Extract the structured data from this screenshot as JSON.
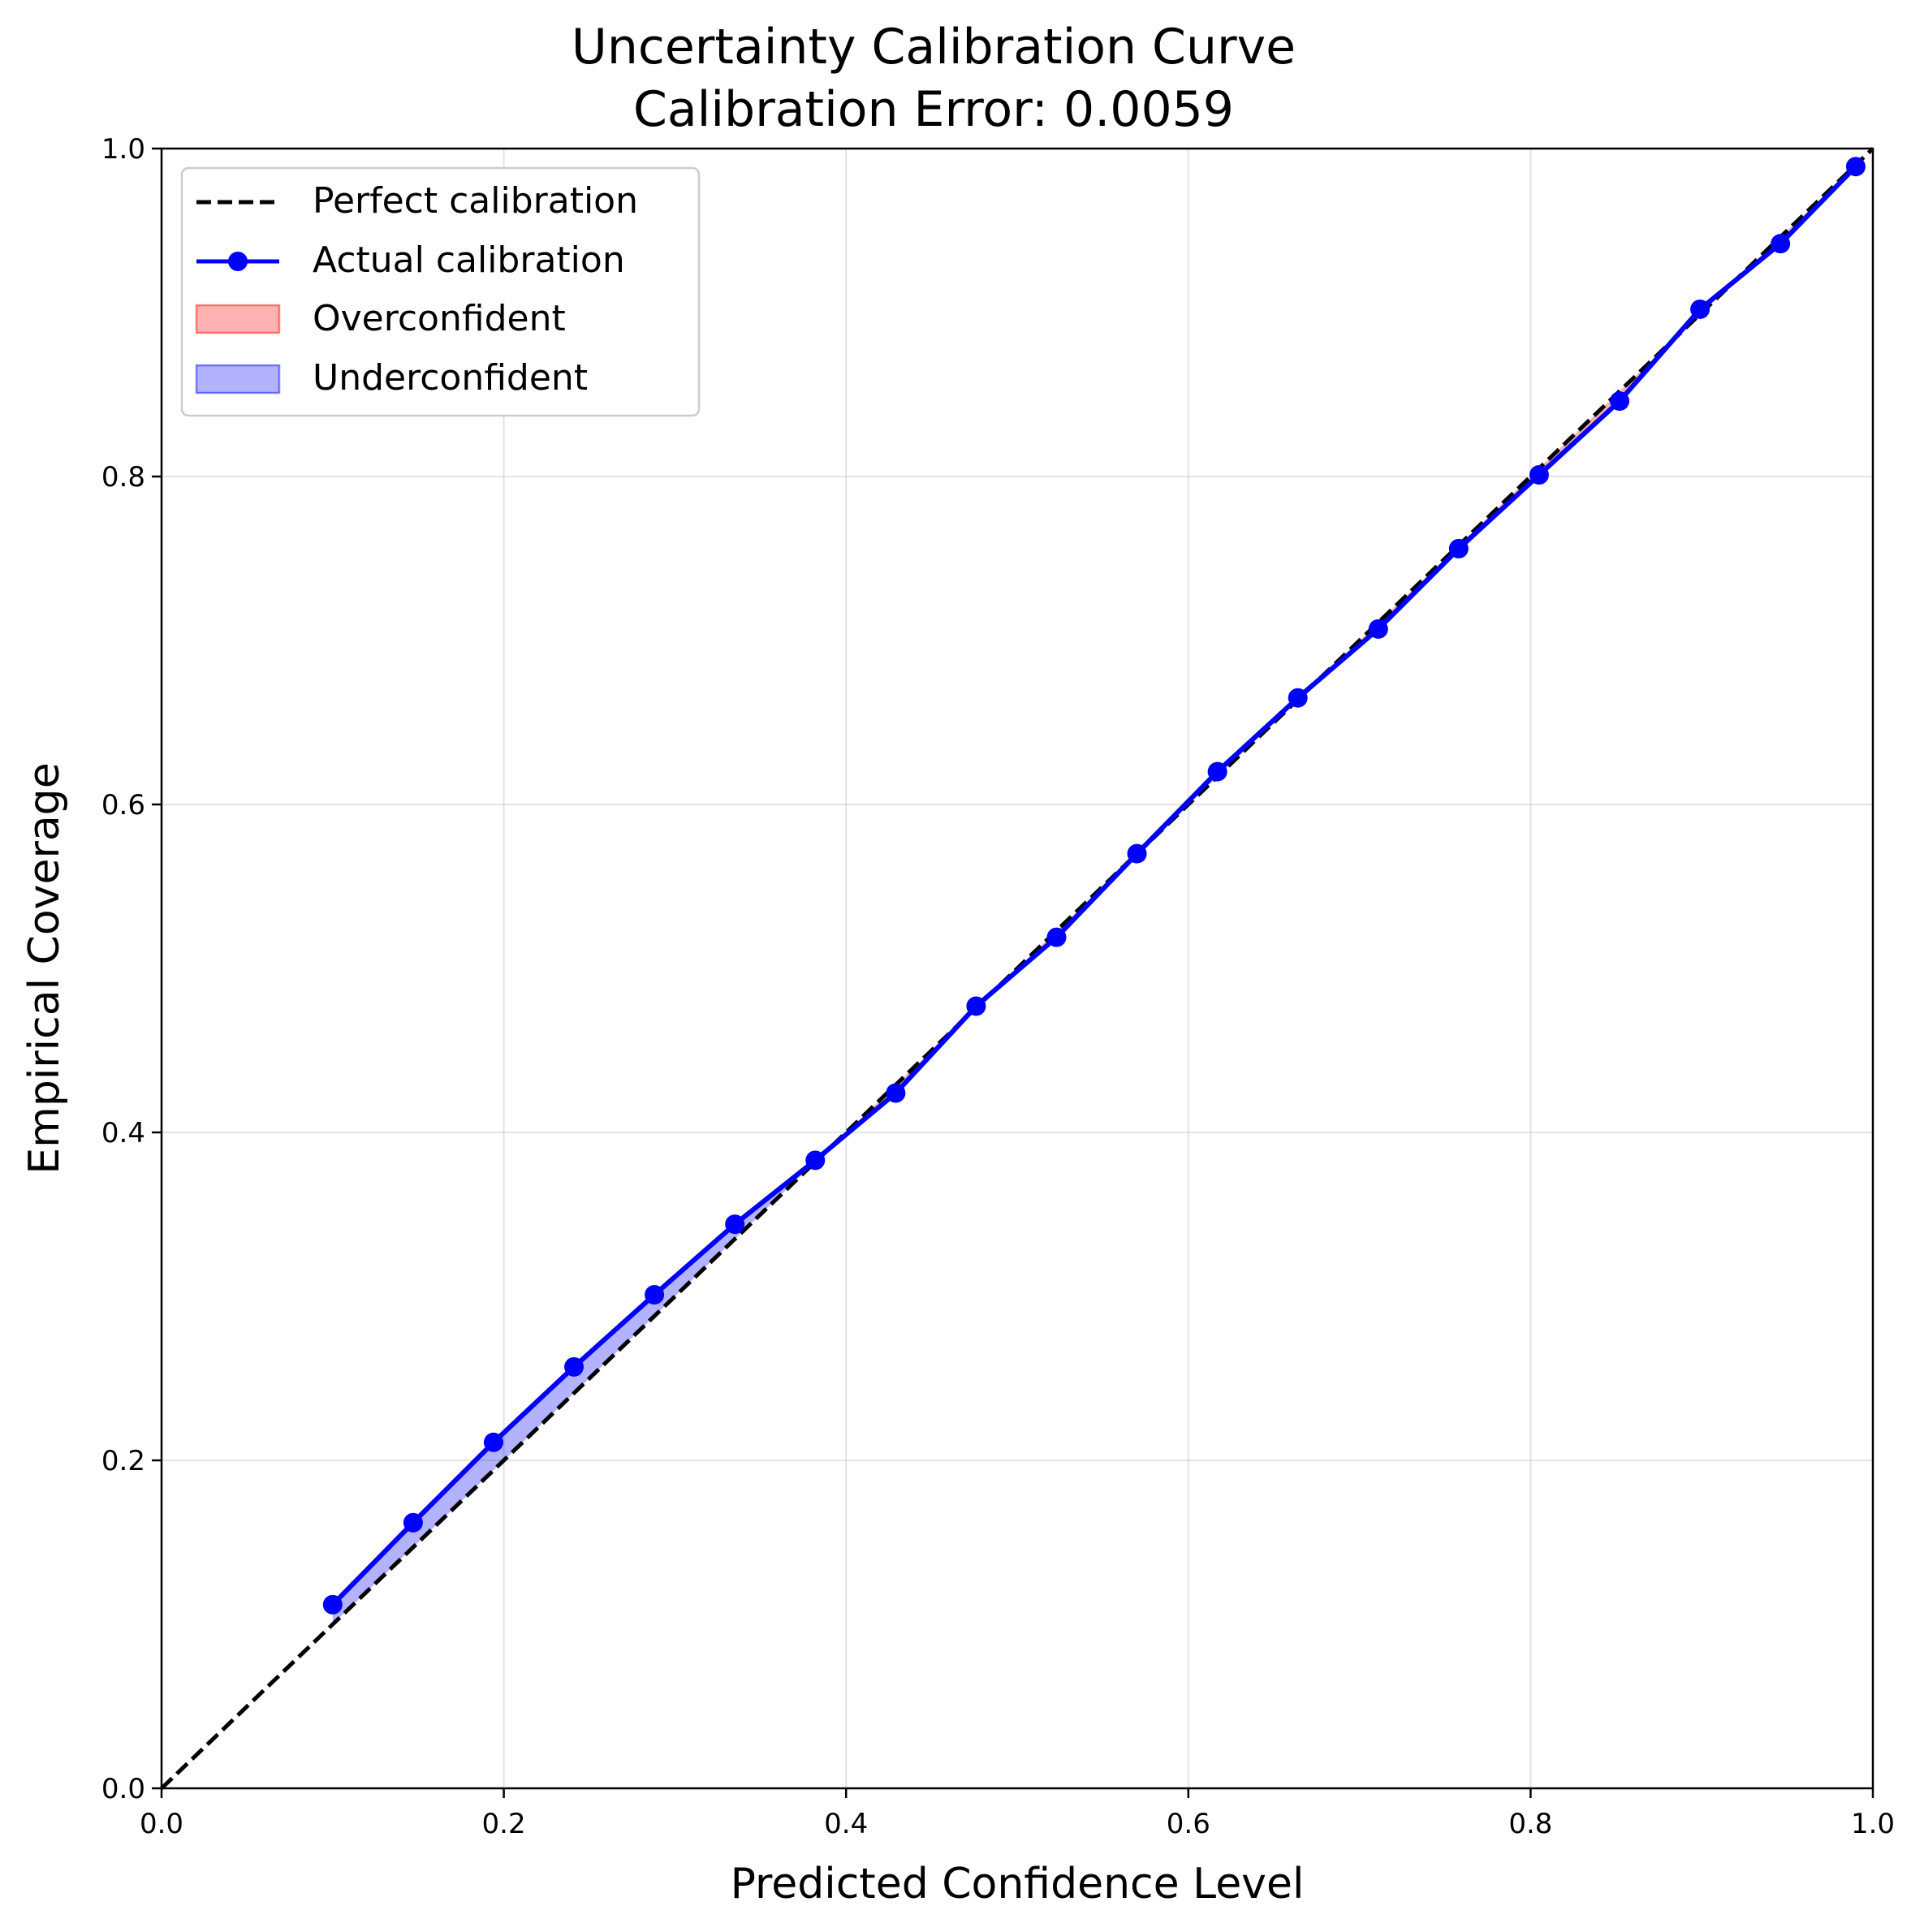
{
  "chart_data": {
    "type": "line",
    "title": "Uncertainty Calibration Curve",
    "subtitle": "Calibration Error: 0.0059",
    "xlabel": "Predicted Confidence Level",
    "ylabel": "Empirical Coverage",
    "xlim": [
      0.0,
      1.0
    ],
    "ylim": [
      0.0,
      1.0
    ],
    "xticks": [
      "0.0",
      "0.2",
      "0.4",
      "0.6",
      "0.8",
      "1.0"
    ],
    "yticks": [
      "0.0",
      "0.2",
      "0.4",
      "0.6",
      "0.8",
      "1.0"
    ],
    "grid": true,
    "legend_position": "top-left",
    "series": [
      {
        "name": "Perfect calibration",
        "style": "dashed",
        "color": "#000000",
        "x": [
          0.0,
          1.0
        ],
        "y": [
          0.0,
          1.0
        ]
      },
      {
        "name": "Actual calibration",
        "style": "solid-with-markers",
        "color": "#0000ff",
        "x": [
          0.1,
          0.147,
          0.194,
          0.241,
          0.288,
          0.335,
          0.382,
          0.429,
          0.476,
          0.523,
          0.57,
          0.617,
          0.664,
          0.711,
          0.758,
          0.805,
          0.852,
          0.899,
          0.946,
          0.99
        ],
        "y": [
          0.112,
          0.162,
          0.211,
          0.257,
          0.301,
          0.344,
          0.383,
          0.424,
          0.477,
          0.519,
          0.57,
          0.62,
          0.665,
          0.707,
          0.756,
          0.801,
          0.846,
          0.902,
          0.942,
          0.989
        ]
      }
    ],
    "fill_legend": [
      {
        "name": "Overconfident",
        "color": "#ff0000"
      },
      {
        "name": "Underconfident",
        "color": "#0000ff"
      }
    ]
  }
}
